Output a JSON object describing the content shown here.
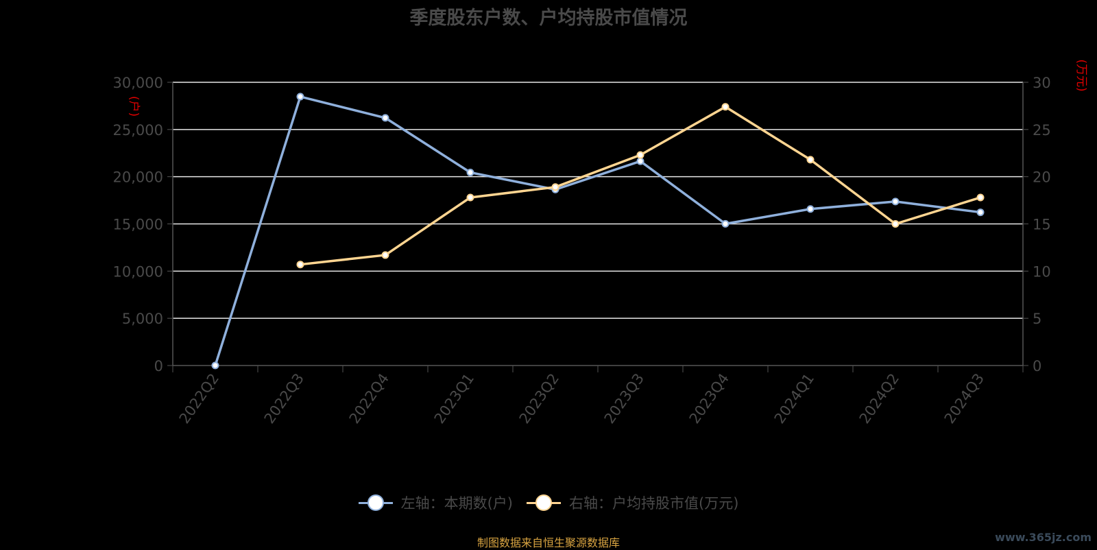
{
  "title": "季度股东户数、户均持股市值情况",
  "source_note": "制图数据来自恒生聚源数据库",
  "watermark": "www.365jz.com",
  "chart_data": {
    "type": "line",
    "categories": [
      "2022Q2",
      "2022Q3",
      "2022Q4",
      "2023Q1",
      "2023Q2",
      "2023Q3",
      "2023Q4",
      "2024Q1",
      "2024Q2",
      "2024Q3"
    ],
    "left_axis": {
      "unit_label": "(户)",
      "ylim": [
        0,
        30000
      ],
      "ticks": [
        "0",
        "5,000",
        "10,000",
        "15,000",
        "20,000",
        "25,000",
        "30,000"
      ]
    },
    "right_axis": {
      "unit_label": "(万元)",
      "ylim": [
        0,
        30
      ],
      "ticks": [
        "0",
        "5",
        "10",
        "15",
        "20",
        "25",
        "30"
      ]
    },
    "series": [
      {
        "name": "左轴：本期数(户)",
        "axis": "left",
        "color": "#8fb0dc",
        "values": [
          12,
          28480,
          26230,
          20450,
          18640,
          21640,
          15010,
          16580,
          17370,
          16230
        ]
      },
      {
        "name": "右轴：户均持股市值(万元)",
        "axis": "right",
        "color": "#ffd591",
        "values": [
          null,
          10.7,
          11.7,
          17.8,
          18.9,
          22.3,
          27.4,
          21.8,
          15.0,
          17.8
        ]
      }
    ],
    "grid": true,
    "legend_position": "bottom"
  }
}
